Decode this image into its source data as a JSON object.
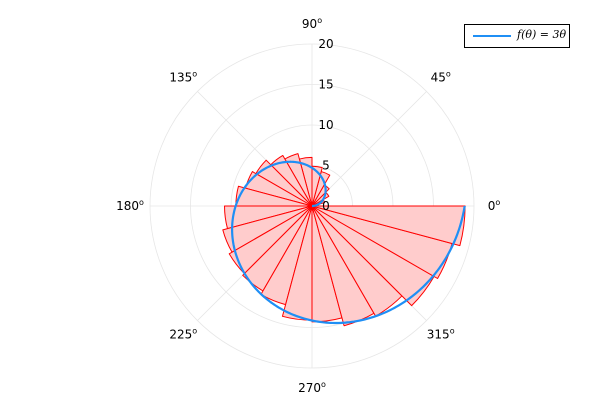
{
  "chart_data": {
    "type": "polar",
    "title": "",
    "angle_ticks": [
      {
        "deg": 0,
        "label": "0",
        "sup": "o"
      },
      {
        "deg": 45,
        "label": "45",
        "sup": "o"
      },
      {
        "deg": 90,
        "label": "90",
        "sup": "o"
      },
      {
        "deg": 135,
        "label": "135",
        "sup": "o"
      },
      {
        "deg": 180,
        "label": "180",
        "sup": "o"
      },
      {
        "deg": 225,
        "label": "225",
        "sup": "o"
      },
      {
        "deg": 270,
        "label": "270",
        "sup": "o"
      },
      {
        "deg": 315,
        "label": "315",
        "sup": "o"
      }
    ],
    "radial_ticks": [
      0,
      5,
      10,
      15,
      20
    ],
    "rlim": [
      0,
      20
    ],
    "grid": true,
    "legend_position": "top-right",
    "series": [
      {
        "name": "f(θ) = 3θ",
        "kind": "curve",
        "function": "3*theta",
        "theta_range_deg": [
          0,
          360
        ],
        "color": "#1f8ff5"
      },
      {
        "name": "",
        "kind": "histogram",
        "color": "#ff0000",
        "fill": "#ffcccc",
        "bins_deg": [
          [
            0,
            15
          ],
          [
            15,
            30
          ],
          [
            30,
            45
          ],
          [
            45,
            60
          ],
          [
            60,
            75
          ],
          [
            75,
            90
          ],
          [
            90,
            105
          ],
          [
            105,
            120
          ],
          [
            120,
            135
          ],
          [
            135,
            150
          ],
          [
            150,
            165
          ],
          [
            165,
            180
          ],
          [
            180,
            195
          ],
          [
            195,
            210
          ],
          [
            210,
            225
          ],
          [
            225,
            240
          ],
          [
            240,
            255
          ],
          [
            255,
            270
          ],
          [
            270,
            285
          ],
          [
            285,
            300
          ],
          [
            300,
            315
          ],
          [
            315,
            330
          ],
          [
            330,
            345
          ],
          [
            345,
            360
          ]
        ],
        "values": [
          0.3,
          1.6,
          2.4,
          3.0,
          4.4,
          4.9,
          6.0,
          6.7,
          7.2,
          8.0,
          8.5,
          9.4,
          10.8,
          11.4,
          11.8,
          12.1,
          12.6,
          14.1,
          14.3,
          15.3,
          15.7,
          17.4,
          17.9,
          18.9
        ]
      }
    ],
    "legend": {
      "label": "f(θ) = 3θ"
    }
  },
  "colors": {
    "curve": "#1f8ff5",
    "bar_stroke": "#ff0000",
    "bar_fill": "#ffcccc",
    "grid": "#e6e6e6"
  }
}
